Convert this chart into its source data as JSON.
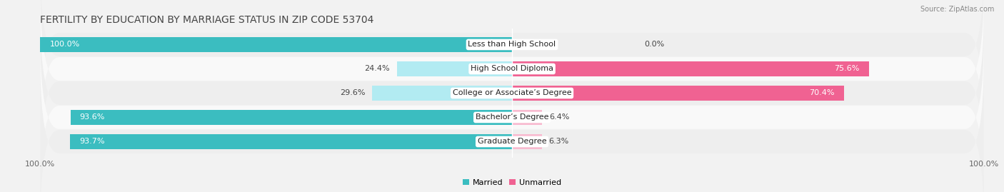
{
  "title": "FERTILITY BY EDUCATION BY MARRIAGE STATUS IN ZIP CODE 53704",
  "source": "Source: ZipAtlas.com",
  "categories": [
    "Less than High School",
    "High School Diploma",
    "College or Associate’s Degree",
    "Bachelor’s Degree",
    "Graduate Degree"
  ],
  "married": [
    100.0,
    24.4,
    29.6,
    93.6,
    93.7
  ],
  "unmarried": [
    0.0,
    75.6,
    70.4,
    6.4,
    6.3
  ],
  "married_color": "#3bbdc0",
  "unmarried_color_large": "#f06292",
  "unmarried_color_small": "#f8bbd0",
  "married_color_small": "#b2ebf2",
  "row_bg_light": "#eeeeee",
  "row_bg_white": "#f9f9f9",
  "title_fontsize": 10,
  "tick_fontsize": 8,
  "label_fontsize": 8,
  "bar_value_fontsize": 8,
  "figsize": [
    14.06,
    2.69
  ],
  "dpi": 100
}
